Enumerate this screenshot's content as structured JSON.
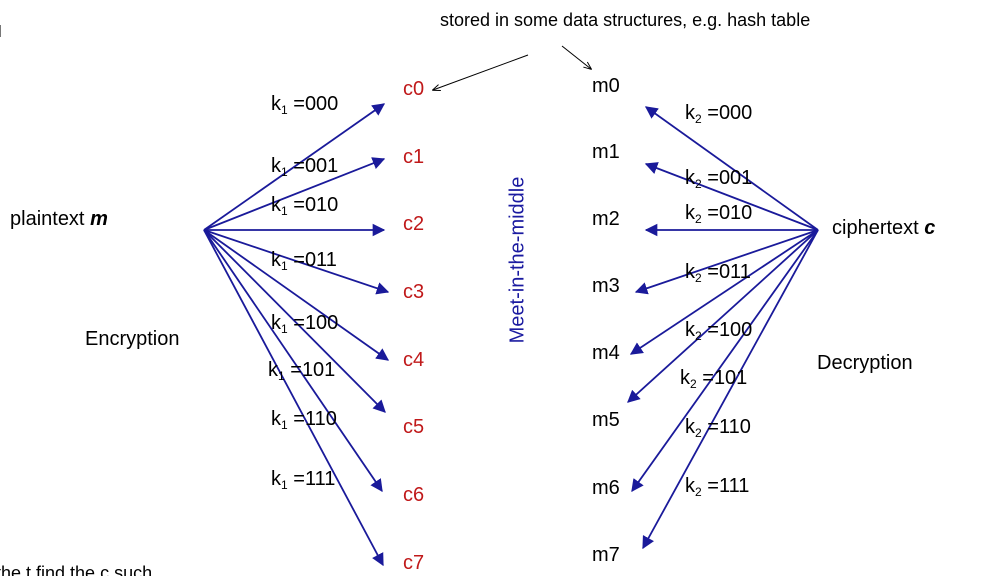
{
  "note": "stored in some data structures, e.g. hash table",
  "plaintext": {
    "label": "plaintext ",
    "var": "m"
  },
  "ciphertext": {
    "label": "ciphertext ",
    "var": "c"
  },
  "encryption_label": "Encryption",
  "decryption_label": "Decryption",
  "center_label": "Meet-in-the-middle",
  "cut_text": "the t find the c such",
  "key_prefix": "k",
  "key_eq": " =",
  "k1_sub": "1",
  "k2_sub": "2",
  "c_nodes": [
    "c0",
    "c1",
    "c2",
    "c3",
    "c4",
    "c5",
    "c6",
    "c7"
  ],
  "m_nodes": [
    "m0",
    "m1",
    "m2",
    "m3",
    "m4",
    "m5",
    "m6",
    "m7"
  ],
  "k1_keys": [
    "000",
    "001",
    "010",
    "011",
    "100",
    "101",
    "110",
    "111"
  ],
  "k2_keys": [
    "000",
    "001",
    "010",
    "011",
    "100",
    "101",
    "110",
    "111"
  ],
  "colors": {
    "arrow": "#1a1a9a",
    "red": "#c0191a",
    "mitm": "#1a1aa0"
  }
}
